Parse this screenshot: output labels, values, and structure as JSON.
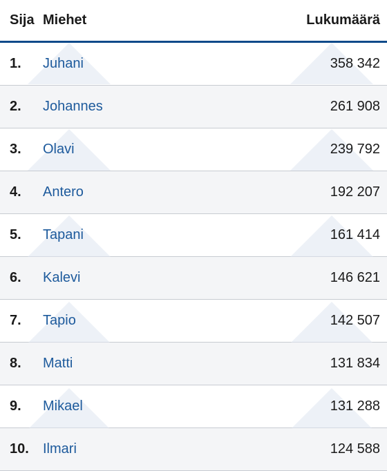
{
  "table": {
    "headers": {
      "rank": "Sija",
      "name": "Miehet",
      "count": "Lukumäärä"
    },
    "rows": [
      {
        "rank": "1.",
        "name": "Juhani",
        "count": "358 342"
      },
      {
        "rank": "2.",
        "name": "Johannes",
        "count": "261 908"
      },
      {
        "rank": "3.",
        "name": "Olavi",
        "count": "239 792"
      },
      {
        "rank": "4.",
        "name": "Antero",
        "count": "192 207"
      },
      {
        "rank": "5.",
        "name": "Tapani",
        "count": "161 414"
      },
      {
        "rank": "6.",
        "name": "Kalevi",
        "count": "146 621"
      },
      {
        "rank": "7.",
        "name": "Tapio",
        "count": "142 507"
      },
      {
        "rank": "8.",
        "name": "Matti",
        "count": "131 834"
      },
      {
        "rank": "9.",
        "name": "Mikael",
        "count": "131 288"
      },
      {
        "rank": "10.",
        "name": "Ilmari",
        "count": "124 588"
      }
    ]
  },
  "colors": {
    "header_rule": "#0f4a8a",
    "link": "#1d5a9c",
    "stripe": "#f4f5f7",
    "pattern": "#dfe6f0"
  }
}
